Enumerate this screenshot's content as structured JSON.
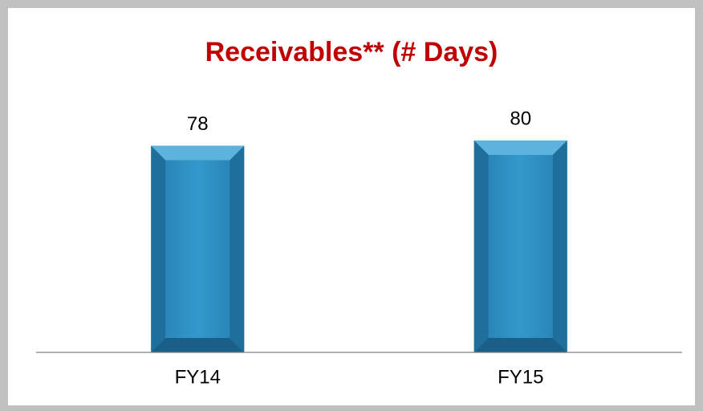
{
  "chart_data": {
    "type": "bar",
    "title": "Receivables** (# Days)",
    "categories": [
      "FY14",
      "FY15"
    ],
    "values": [
      78,
      80
    ],
    "color": "#2b8cbe",
    "ylim": [
      0,
      100
    ]
  }
}
